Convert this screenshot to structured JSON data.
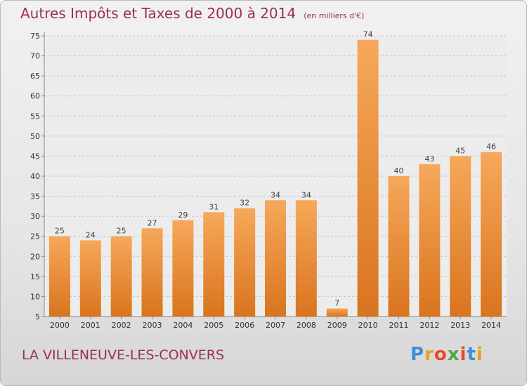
{
  "title": "Autres Impôts et Taxes de 2000 à 2014",
  "subtitle": "(en milliers d'€)",
  "commune": "LA VILLENEUVE-LES-CONVERS",
  "logo": {
    "text": "Proxiti",
    "letter_colors": [
      "#3a8fd6",
      "#e8a020",
      "#e84a2a",
      "#4aa84a",
      "#e84a2a",
      "#3a8fd6",
      "#e8a020"
    ]
  },
  "colors": {
    "bar_light": "#f6a85a",
    "bar_dark": "#d9741e",
    "title": "#9b2d5b"
  },
  "chart_data": {
    "type": "bar",
    "title": "Autres Impôts et Taxes de 2000 à 2014",
    "categories": [
      "2000",
      "2001",
      "2002",
      "2003",
      "2004",
      "2005",
      "2006",
      "2007",
      "2008",
      "2009",
      "2010",
      "2011",
      "2012",
      "2013",
      "2014"
    ],
    "values": [
      25,
      24,
      25,
      27,
      29,
      31,
      32,
      34,
      34,
      7,
      74,
      40,
      43,
      45,
      46
    ],
    "ylim": [
      5,
      75
    ],
    "yticks": [
      5,
      10,
      15,
      20,
      25,
      30,
      35,
      40,
      45,
      50,
      55,
      60,
      65,
      70,
      75
    ],
    "grid": "horizontal dashed",
    "xlabel": "",
    "ylabel": ""
  }
}
